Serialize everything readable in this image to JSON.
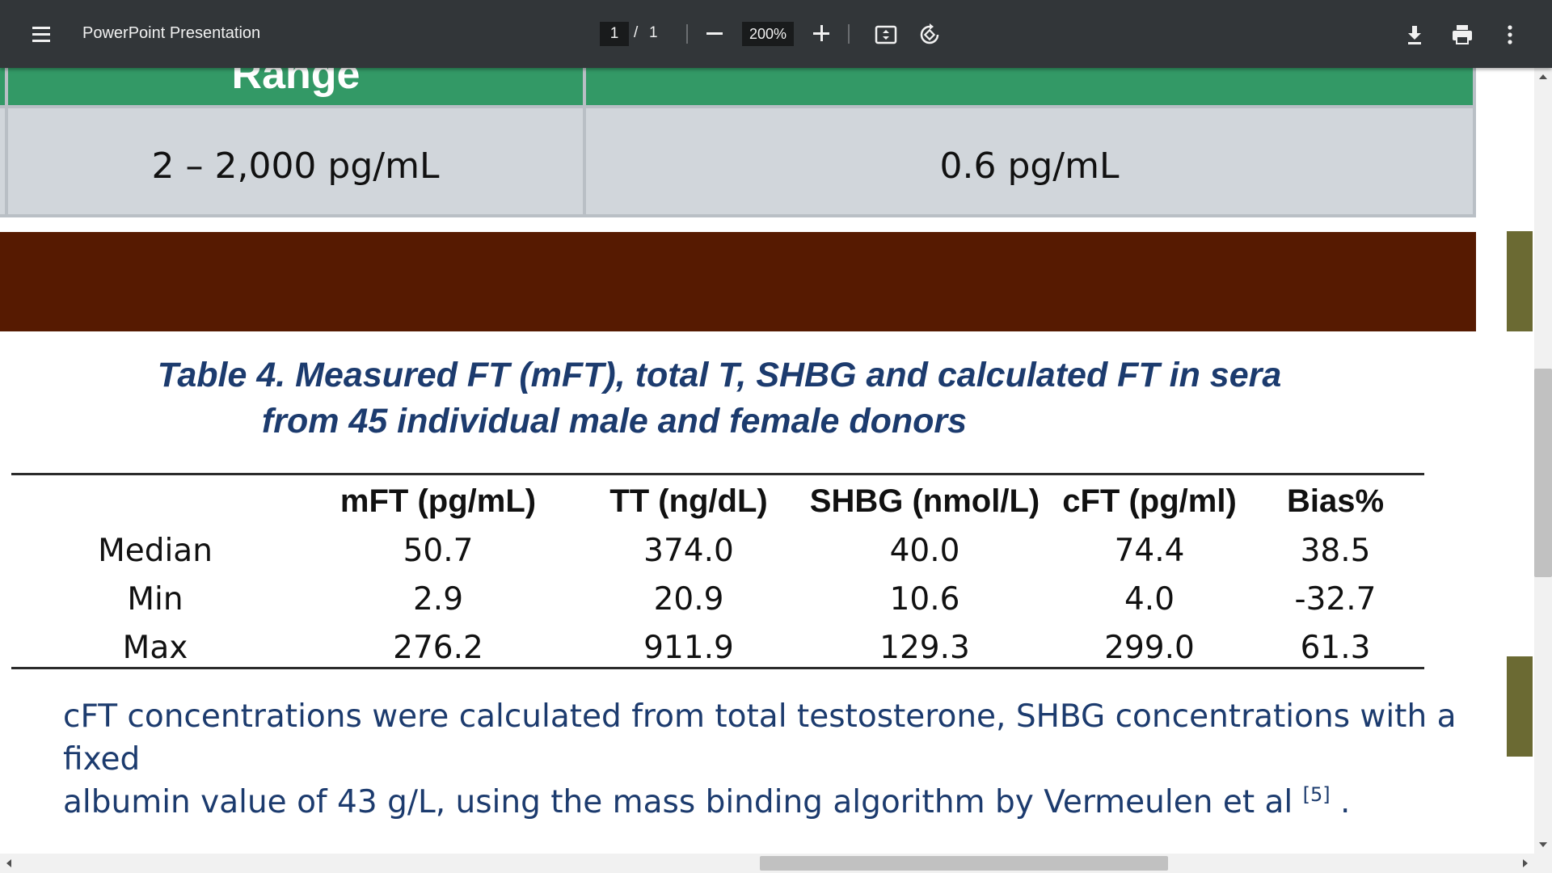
{
  "toolbar": {
    "title": "PowerPoint Presentation",
    "page_current": "1",
    "page_separator": "/",
    "page_total": "1",
    "zoom": "200%",
    "icons": [
      "menu-icon",
      "zoom-out-icon",
      "zoom-in-icon",
      "fit-page-icon",
      "rotate-icon",
      "download-icon",
      "print-icon",
      "more-options-icon"
    ]
  },
  "slide": {
    "header_cell": "Range",
    "range_value": "2 – 2,000 pg/mL",
    "sensitivity_value": "0.6 pg/mL",
    "colors": {
      "green_header": "#339966",
      "gray_row": "#d1d6db",
      "brown_bar": "#561a01",
      "caption_blue": "#1c3b6e",
      "olive_marker": "#6b6a33"
    },
    "caption_line1": "Table 4.  Measured FT (mFT), total T, SHBG and calculated FT in sera",
    "caption_line2": "from 45 individual male and female donors",
    "table": {
      "headers": [
        "",
        "mFT (pg/mL)",
        "TT (ng/dL)",
        "SHBG (nmol/L)",
        "cFT (pg/ml)",
        "Bias%"
      ],
      "rows": [
        [
          "Median",
          "50.7",
          "374.0",
          "40.0",
          "74.4",
          "38.5"
        ],
        [
          "Min",
          "2.9",
          "20.9",
          "10.6",
          "4.0",
          "-32.7"
        ],
        [
          "Max",
          "276.2",
          "911.9",
          "129.3",
          "299.0",
          "61.3"
        ]
      ]
    },
    "note_line1": "cFT concentrations were calculated from total testosterone, SHBG concentrations with a fixed",
    "note_line2": "albumin value of 43 g/L, using the mass binding algorithm by Vermeulen et al ",
    "note_ref": "[5]",
    "note_end": " ."
  }
}
